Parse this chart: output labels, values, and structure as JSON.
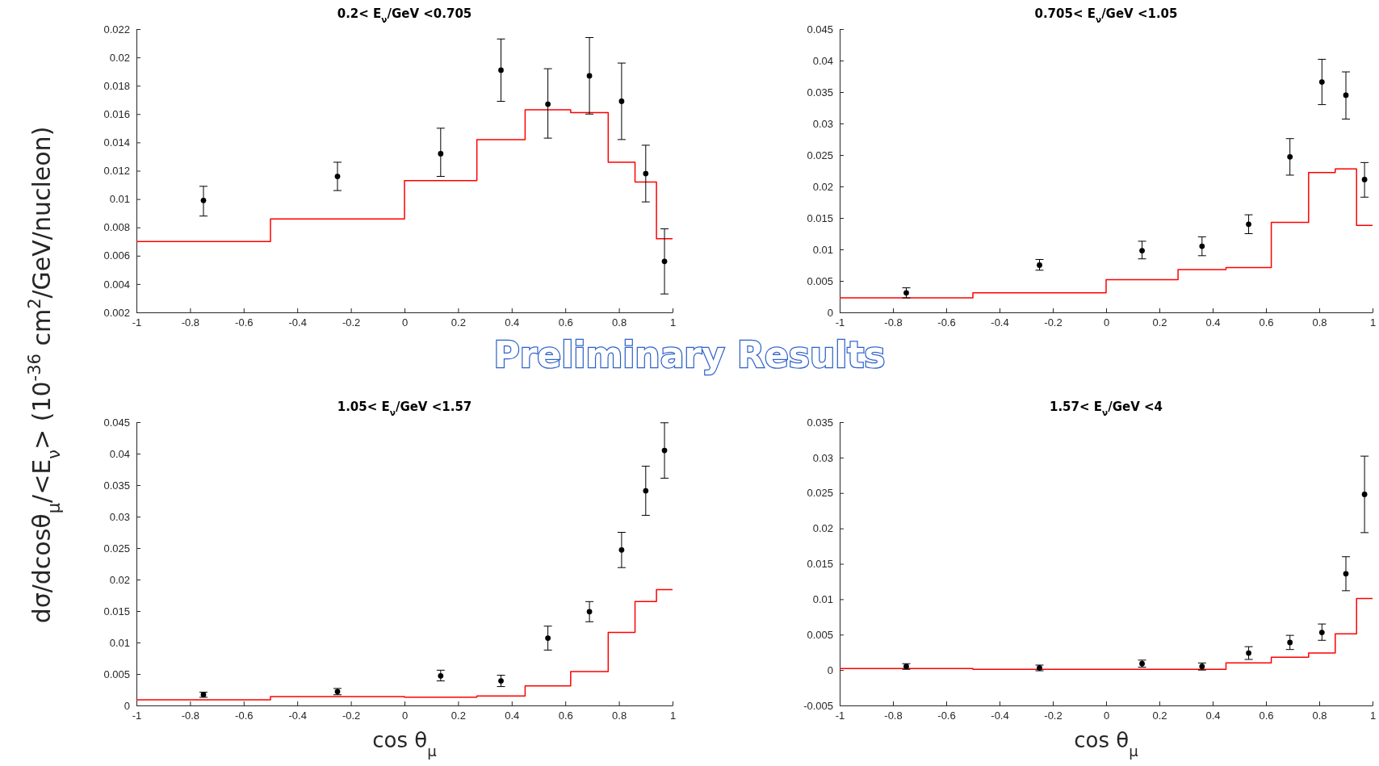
{
  "chart_data": [
    {
      "type": "step",
      "title": "0.2< E$_{ν}$/GeV <0.705",
      "ylabel": "dσ/dcosθ$_{μ}$/<E$_{ν}$> (10$^{-36}$ cm$^{2}$/GeV/nucleon)",
      "annotations": [
        "Preliminary Results"
      ],
      "xlim": [
        -1,
        1
      ],
      "ylim": [
        0.002,
        0.022
      ],
      "xticks": [
        -1,
        -0.8,
        -0.6,
        -0.4,
        -0.2,
        0,
        0.2,
        0.4,
        0.6,
        0.8,
        1
      ],
      "yticks": [
        0.002,
        0.004,
        0.006,
        0.008,
        0.01,
        0.012,
        0.014,
        0.016,
        0.018,
        0.02,
        0.022
      ],
      "series": [
        {
          "color": "#ff0000",
          "x": [
            -1,
            -0.5,
            0,
            0.27,
            0.45,
            0.62,
            0.76,
            0.86,
            0.94,
            1
          ],
          "values": [
            0.007,
            0.0086,
            0.0113,
            0.0142,
            0.0163,
            0.0161,
            0.0126,
            0.0112,
            0.0072,
            0.0072
          ]
        },
        {
          "type": "scatter",
          "color": "#000000",
          "marker": "circle",
          "x": [
            -0.75,
            -0.25,
            0.135,
            0.36,
            0.535,
            0.69,
            0.81,
            0.9,
            0.97
          ],
          "values": [
            0.0099,
            0.0116,
            0.0132,
            0.0191,
            0.0167,
            0.0187,
            0.0169,
            0.0118,
            0.0056
          ],
          "errors": [
            [
              0.0088,
              0.0109
            ],
            [
              0.0106,
              0.0126
            ],
            [
              0.0116,
              0.015
            ],
            [
              0.0169,
              0.0213
            ],
            [
              0.0143,
              0.0192
            ],
            [
              0.016,
              0.0214
            ],
            [
              0.0142,
              0.0196
            ],
            [
              0.0098,
              0.0138
            ],
            [
              0.0033,
              0.0079
            ]
          ]
        }
      ]
    },
    {
      "type": "step",
      "title": "0.705< E$_{ν}$/GeV <1.05",
      "xlim": [
        -1,
        1
      ],
      "ylim": [
        0,
        0.045
      ],
      "xticks": [
        -1,
        -0.8,
        -0.6,
        -0.4,
        -0.2,
        0,
        0.2,
        0.4,
        0.6,
        0.8,
        1
      ],
      "yticks": [
        0,
        0.005,
        0.01,
        0.015,
        0.02,
        0.025,
        0.03,
        0.035,
        0.04,
        0.045
      ],
      "series": [
        {
          "color": "#ff0000",
          "x": [
            -1,
            -0.5,
            0,
            0.27,
            0.45,
            0.62,
            0.76,
            0.86,
            0.94,
            1
          ],
          "values": [
            0.0023,
            0.0031,
            0.0052,
            0.0068,
            0.0071,
            0.0143,
            0.0222,
            0.0228,
            0.0138,
            0.0138
          ]
        },
        {
          "type": "scatter",
          "color": "#000000",
          "marker": "circle",
          "x": [
            -0.75,
            -0.25,
            0.135,
            0.36,
            0.535,
            0.69,
            0.81,
            0.9,
            0.97
          ],
          "values": [
            0.0031,
            0.0075,
            0.0098,
            0.0105,
            0.014,
            0.0247,
            0.0366,
            0.0345,
            0.0211
          ],
          "errors": [
            [
              0.0023,
              0.0039
            ],
            [
              0.0067,
              0.0084
            ],
            [
              0.0085,
              0.0113
            ],
            [
              0.009,
              0.012
            ],
            [
              0.0125,
              0.0155
            ],
            [
              0.0218,
              0.0276
            ],
            [
              0.033,
              0.0402
            ],
            [
              0.0307,
              0.0382
            ],
            [
              0.0183,
              0.0238
            ]
          ]
        }
      ]
    },
    {
      "type": "step",
      "title": "1.05< E$_{ν}$/GeV <1.57",
      "xlabel": "cos θ$_{μ}$",
      "xlim": [
        -1,
        1
      ],
      "ylim": [
        0,
        0.045
      ],
      "xticks": [
        -1,
        -0.8,
        -0.6,
        -0.4,
        -0.2,
        0,
        0.2,
        0.4,
        0.6,
        0.8,
        1
      ],
      "yticks": [
        0,
        0.005,
        0.01,
        0.015,
        0.02,
        0.025,
        0.03,
        0.035,
        0.04,
        0.045
      ],
      "series": [
        {
          "color": "#ff0000",
          "x": [
            -1,
            -0.5,
            0,
            0.27,
            0.45,
            0.62,
            0.76,
            0.86,
            0.94,
            1
          ],
          "values": [
            0.0009,
            0.0014,
            0.0013,
            0.0015,
            0.0031,
            0.0054,
            0.0116,
            0.0165,
            0.0184,
            0.0184
          ]
        },
        {
          "type": "scatter",
          "color": "#000000",
          "marker": "circle",
          "x": [
            -0.75,
            -0.25,
            0.135,
            0.36,
            0.535,
            0.69,
            0.81,
            0.9,
            0.97
          ],
          "values": [
            0.0017,
            0.0022,
            0.0047,
            0.0039,
            0.0107,
            0.0149,
            0.0247,
            0.0341,
            0.0405
          ],
          "errors": [
            [
              0.0013,
              0.0021
            ],
            [
              0.0017,
              0.0027
            ],
            [
              0.0039,
              0.0056
            ],
            [
              0.003,
              0.0048
            ],
            [
              0.0088,
              0.0126
            ],
            [
              0.0133,
              0.0165
            ],
            [
              0.0219,
              0.0275
            ],
            [
              0.0302,
              0.038
            ],
            [
              0.0361,
              0.0449
            ]
          ]
        }
      ]
    },
    {
      "type": "step",
      "title": "1.57< E$_{ν}$/GeV <4",
      "xlabel": "cos θ$_{μ}$",
      "xlim": [
        -1,
        1
      ],
      "ylim": [
        -0.005,
        0.035
      ],
      "xticks": [
        -1,
        -0.8,
        -0.6,
        -0.4,
        -0.2,
        0,
        0.2,
        0.4,
        0.6,
        0.8,
        1
      ],
      "yticks": [
        -0.005,
        0,
        0.005,
        0.01,
        0.015,
        0.02,
        0.025,
        0.03,
        0.035
      ],
      "series": [
        {
          "color": "#ff0000",
          "x": [
            -1,
            -0.5,
            0,
            0.27,
            0.45,
            0.62,
            0.76,
            0.86,
            0.94,
            1
          ],
          "values": [
            0.0002,
            0.0001,
            0.0001,
            0.0001,
            0.001,
            0.0018,
            0.0024,
            0.0051,
            0.0101,
            0.0101
          ]
        },
        {
          "type": "scatter",
          "color": "#000000",
          "marker": "circle",
          "x": [
            -0.75,
            -0.25,
            0.135,
            0.36,
            0.535,
            0.69,
            0.81,
            0.9,
            0.97
          ],
          "values": [
            0.0005,
            0.0003,
            0.0009,
            0.0005,
            0.0024,
            0.0039,
            0.0053,
            0.0136,
            0.0248
          ],
          "errors": [
            [
              0.0001,
              0.0009
            ],
            [
              -0.0001,
              0.0007
            ],
            [
              0.0004,
              0.0014
            ],
            [
              0,
              0.001
            ],
            [
              0.0015,
              0.0033
            ],
            [
              0.0029,
              0.0049
            ],
            [
              0.0042,
              0.0065
            ],
            [
              0.0112,
              0.016
            ],
            [
              0.0194,
              0.0302
            ]
          ]
        }
      ]
    }
  ]
}
